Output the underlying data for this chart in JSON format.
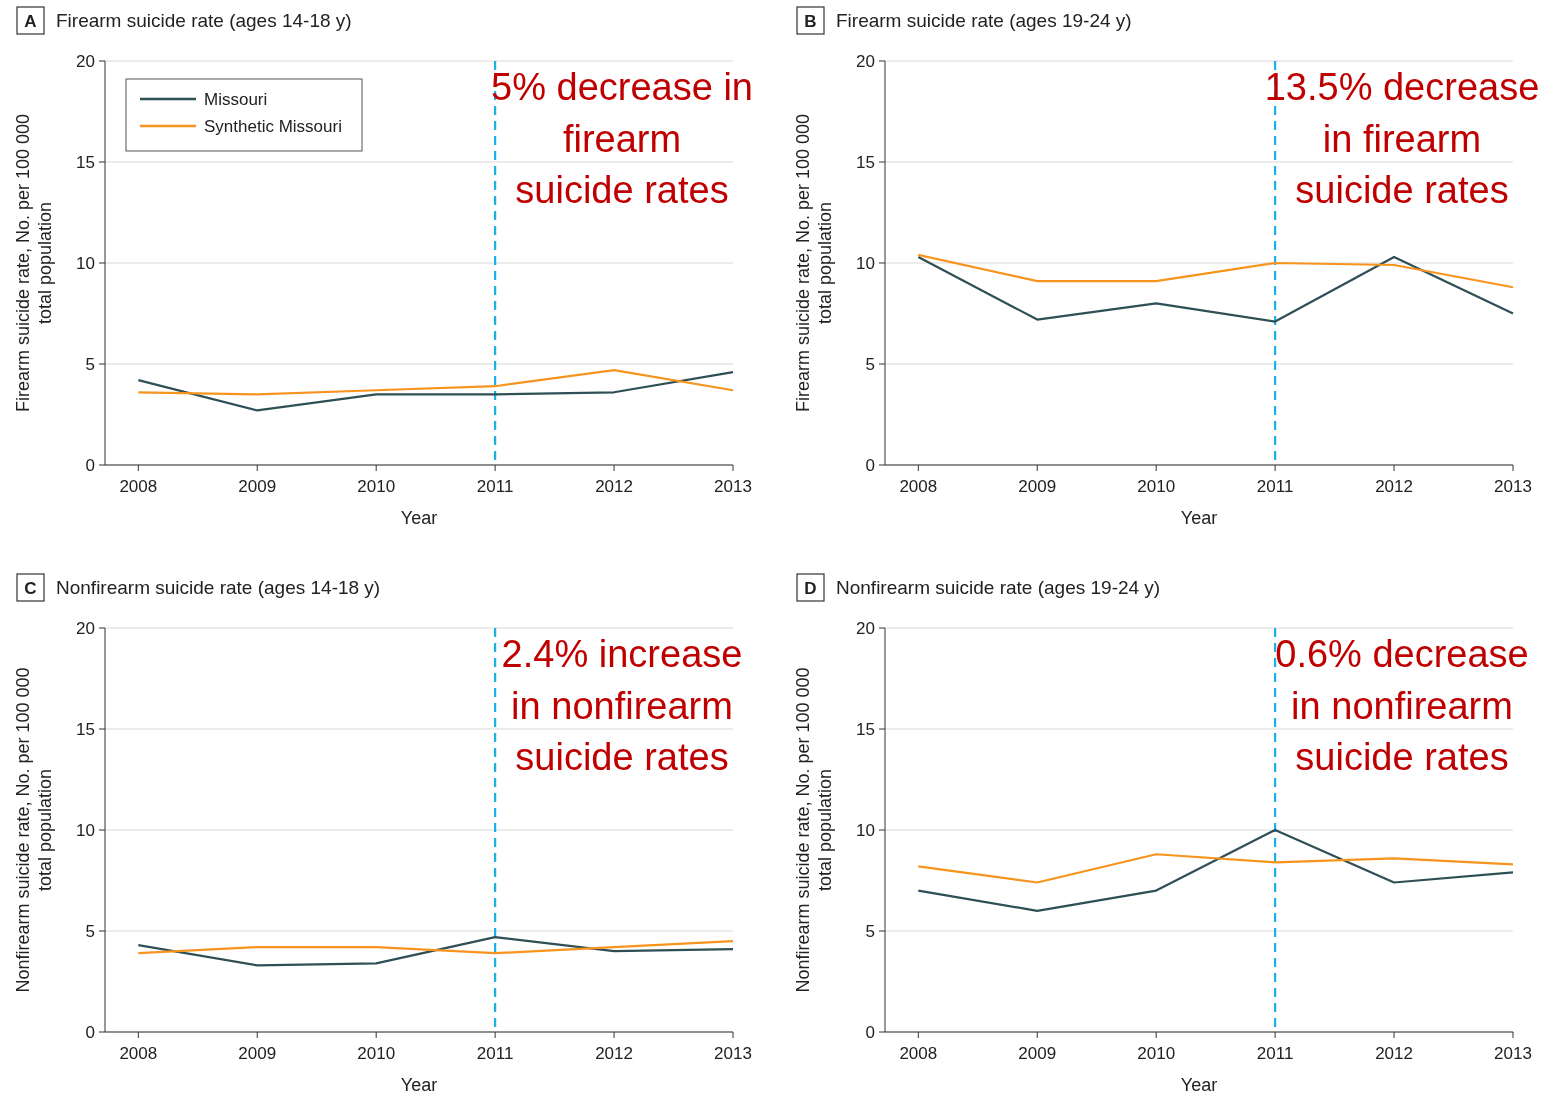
{
  "chart_data": [
    {
      "type": "line",
      "title": "Firearm suicide rate (ages 14-18 y)",
      "xlabel": "Year",
      "ylabel": "Firearm suicide rate, No. per 100 000 total population",
      "x": [
        2008,
        2009,
        2010,
        2011,
        2012,
        2013
      ],
      "xlim": [
        2007.72,
        2013
      ],
      "xticks": [
        2008,
        2009,
        2010,
        2011,
        2012,
        2013
      ],
      "ylim": [
        0,
        20
      ],
      "yticks": [
        0,
        5,
        10,
        15,
        20
      ],
      "grid": "y",
      "legend": "top left",
      "marker": "none",
      "line_style": "solid",
      "series": [
        {
          "name": "Missouri",
          "color": "#2e4f56",
          "values": [
            4.2,
            2.7,
            3.5,
            3.5,
            3.6,
            4.6
          ]
        },
        {
          "name": "Synthetic Missouri",
          "color": "#f7941d",
          "values": [
            3.6,
            3.5,
            3.7,
            3.9,
            4.7,
            3.7
          ]
        }
      ],
      "ref_lines": [
        {
          "axis": "x",
          "value": 2011,
          "color": "#1ab0e8",
          "line_style": "dashed"
        }
      ],
      "annotations": [
        "A",
        "5% decrease in firearm suicide rates"
      ]
    },
    {
      "type": "line",
      "title": "Firearm suicide rate (ages 19-24 y)",
      "xlabel": "Year",
      "ylabel": "Firearm suicide rate, No. per 100 000 total population",
      "x": [
        2008,
        2009,
        2010,
        2011,
        2012,
        2013
      ],
      "xlim": [
        2007.72,
        2013
      ],
      "xticks": [
        2008,
        2009,
        2010,
        2011,
        2012,
        2013
      ],
      "ylim": [
        0,
        20
      ],
      "yticks": [
        0,
        5,
        10,
        15,
        20
      ],
      "grid": "y",
      "marker": "none",
      "line_style": "solid",
      "series": [
        {
          "color": "#2e4f56",
          "values": [
            10.3,
            7.2,
            8.0,
            7.1,
            10.3,
            7.5
          ]
        },
        {
          "color": "#f7941d",
          "values": [
            10.4,
            9.1,
            9.1,
            10.0,
            9.9,
            8.8
          ]
        }
      ],
      "ref_lines": [
        {
          "axis": "x",
          "value": 2011,
          "color": "#1ab0e8",
          "line_style": "dashed"
        }
      ],
      "annotations": [
        "B",
        "13.5% decrease in firearm suicide rates"
      ]
    },
    {
      "type": "line",
      "title": "Nonfirearm suicide rate (ages 14-18 y)",
      "xlabel": "Year",
      "ylabel": "Nonfirearm suicide rate, No. per 100 000 total population",
      "x": [
        2008,
        2009,
        2010,
        2011,
        2012,
        2013
      ],
      "xlim": [
        2007.72,
        2013
      ],
      "xticks": [
        2008,
        2009,
        2010,
        2011,
        2012,
        2013
      ],
      "ylim": [
        0,
        20
      ],
      "yticks": [
        0,
        5,
        10,
        15,
        20
      ],
      "grid": "y",
      "marker": "none",
      "line_style": "solid",
      "series": [
        {
          "color": "#2e4f56",
          "values": [
            4.3,
            3.3,
            3.4,
            4.7,
            4.0,
            4.1
          ]
        },
        {
          "color": "#f7941d",
          "values": [
            3.9,
            4.2,
            4.2,
            3.9,
            4.2,
            4.5
          ]
        }
      ],
      "ref_lines": [
        {
          "axis": "x",
          "value": 2011,
          "color": "#1ab0e8",
          "line_style": "dashed"
        }
      ],
      "annotations": [
        "C",
        "2.4% increase in nonfirearm suicide rates"
      ]
    },
    {
      "type": "line",
      "title": "Nonfirearm suicide rate (ages 19-24 y)",
      "xlabel": "Year",
      "ylabel": "Nonfirearm suicide rate, No. per 100 000 total population",
      "x": [
        2008,
        2009,
        2010,
        2011,
        2012,
        2013
      ],
      "xlim": [
        2007.72,
        2013
      ],
      "xticks": [
        2008,
        2009,
        2010,
        2011,
        2012,
        2013
      ],
      "ylim": [
        0,
        20
      ],
      "yticks": [
        0,
        5,
        10,
        15,
        20
      ],
      "grid": "y",
      "marker": "none",
      "line_style": "solid",
      "series": [
        {
          "color": "#2e4f56",
          "values": [
            7.0,
            6.0,
            7.0,
            10.0,
            7.4,
            7.9
          ]
        },
        {
          "color": "#f7941d",
          "values": [
            8.2,
            7.4,
            8.8,
            8.4,
            8.6,
            8.3
          ]
        }
      ],
      "ref_lines": [
        {
          "axis": "x",
          "value": 2011,
          "color": "#1ab0e8",
          "line_style": "dashed"
        }
      ],
      "annotations": [
        "D",
        "0.6% decrease in nonfirearm suicide rates"
      ]
    }
  ]
}
